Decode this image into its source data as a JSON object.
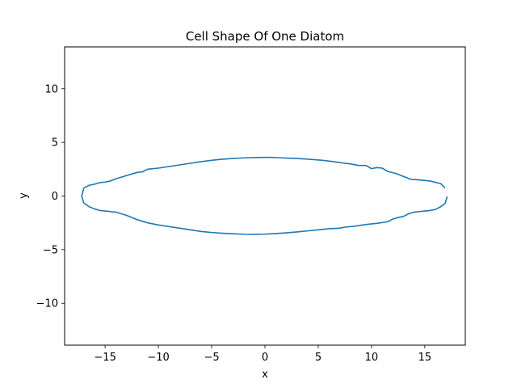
{
  "chart_data": {
    "type": "line",
    "title": "Cell Shape Of One Diatom",
    "xlabel": "x",
    "ylabel": "y",
    "xlim": [
      -18.8,
      18.8
    ],
    "ylim": [
      -13.9,
      13.9
    ],
    "xticks": [
      -15,
      -10,
      -5,
      0,
      5,
      10,
      15
    ],
    "yticks": [
      -10,
      -5,
      0,
      5,
      10
    ],
    "xtick_labels": [
      "−15",
      "−10",
      "−5",
      "0",
      "5",
      "10",
      "15"
    ],
    "ytick_labels": [
      "−10",
      "−5",
      "0",
      "5",
      "10"
    ],
    "grid": false,
    "series": [
      {
        "color": "#1f77b4",
        "x": [
          16.9,
          16.5,
          15.5,
          14.5,
          13.7,
          12.8,
          12.3,
          11.5,
          11.0,
          10.5,
          10.0,
          9.5,
          8.8,
          8.0,
          7.5,
          6.5,
          5.5,
          4.5,
          3.5,
          2.5,
          1.5,
          0.5,
          0.0,
          -1.0,
          -2.0,
          -3.0,
          -4.0,
          -5.0,
          -6.0,
          -7.0,
          -8.0,
          -9.0,
          -10.0,
          -11.0,
          -11.5,
          -12.0,
          -13.0,
          -14.0,
          -14.5,
          -15.0,
          -15.5,
          -16.0,
          -16.5,
          -17.0,
          -17.2,
          -17.0,
          -16.5,
          -16.0,
          -15.5,
          -15.0,
          -14.5,
          -14.0,
          -13.0,
          -12.5,
          -12.0,
          -11.0,
          -10.0,
          -9.0,
          -8.0,
          -7.0,
          -6.0,
          -5.0,
          -4.0,
          -3.0,
          -2.0,
          -1.0,
          0.0,
          1.0,
          2.0,
          3.0,
          4.0,
          5.0,
          6.0,
          7.0,
          7.5,
          8.5,
          9.5,
          10.5,
          11.5,
          12.0,
          12.5,
          13.0,
          13.5,
          14.0,
          14.5,
          15.0,
          15.5,
          16.0,
          16.5,
          16.9,
          17.1
        ],
        "y": [
          0.75,
          1.15,
          1.4,
          1.5,
          1.55,
          1.9,
          2.1,
          2.3,
          2.6,
          2.65,
          2.55,
          2.85,
          2.85,
          3.0,
          3.05,
          3.2,
          3.32,
          3.4,
          3.47,
          3.52,
          3.56,
          3.6,
          3.6,
          3.58,
          3.55,
          3.5,
          3.43,
          3.33,
          3.2,
          3.05,
          2.9,
          2.75,
          2.6,
          2.5,
          2.25,
          2.2,
          1.9,
          1.6,
          1.4,
          1.3,
          1.25,
          1.1,
          1.0,
          0.75,
          0.0,
          -0.65,
          -1.0,
          -1.2,
          -1.35,
          -1.4,
          -1.45,
          -1.5,
          -1.8,
          -2.0,
          -2.2,
          -2.5,
          -2.7,
          -2.85,
          -3.0,
          -3.15,
          -3.3,
          -3.4,
          -3.47,
          -3.52,
          -3.56,
          -3.57,
          -3.55,
          -3.5,
          -3.43,
          -3.35,
          -3.25,
          -3.15,
          -3.05,
          -3.0,
          -2.9,
          -2.8,
          -2.65,
          -2.55,
          -2.4,
          -2.15,
          -2.0,
          -1.9,
          -1.65,
          -1.5,
          -1.45,
          -1.4,
          -1.35,
          -1.25,
          -1.0,
          -0.7,
          -0.05
        ]
      }
    ]
  }
}
